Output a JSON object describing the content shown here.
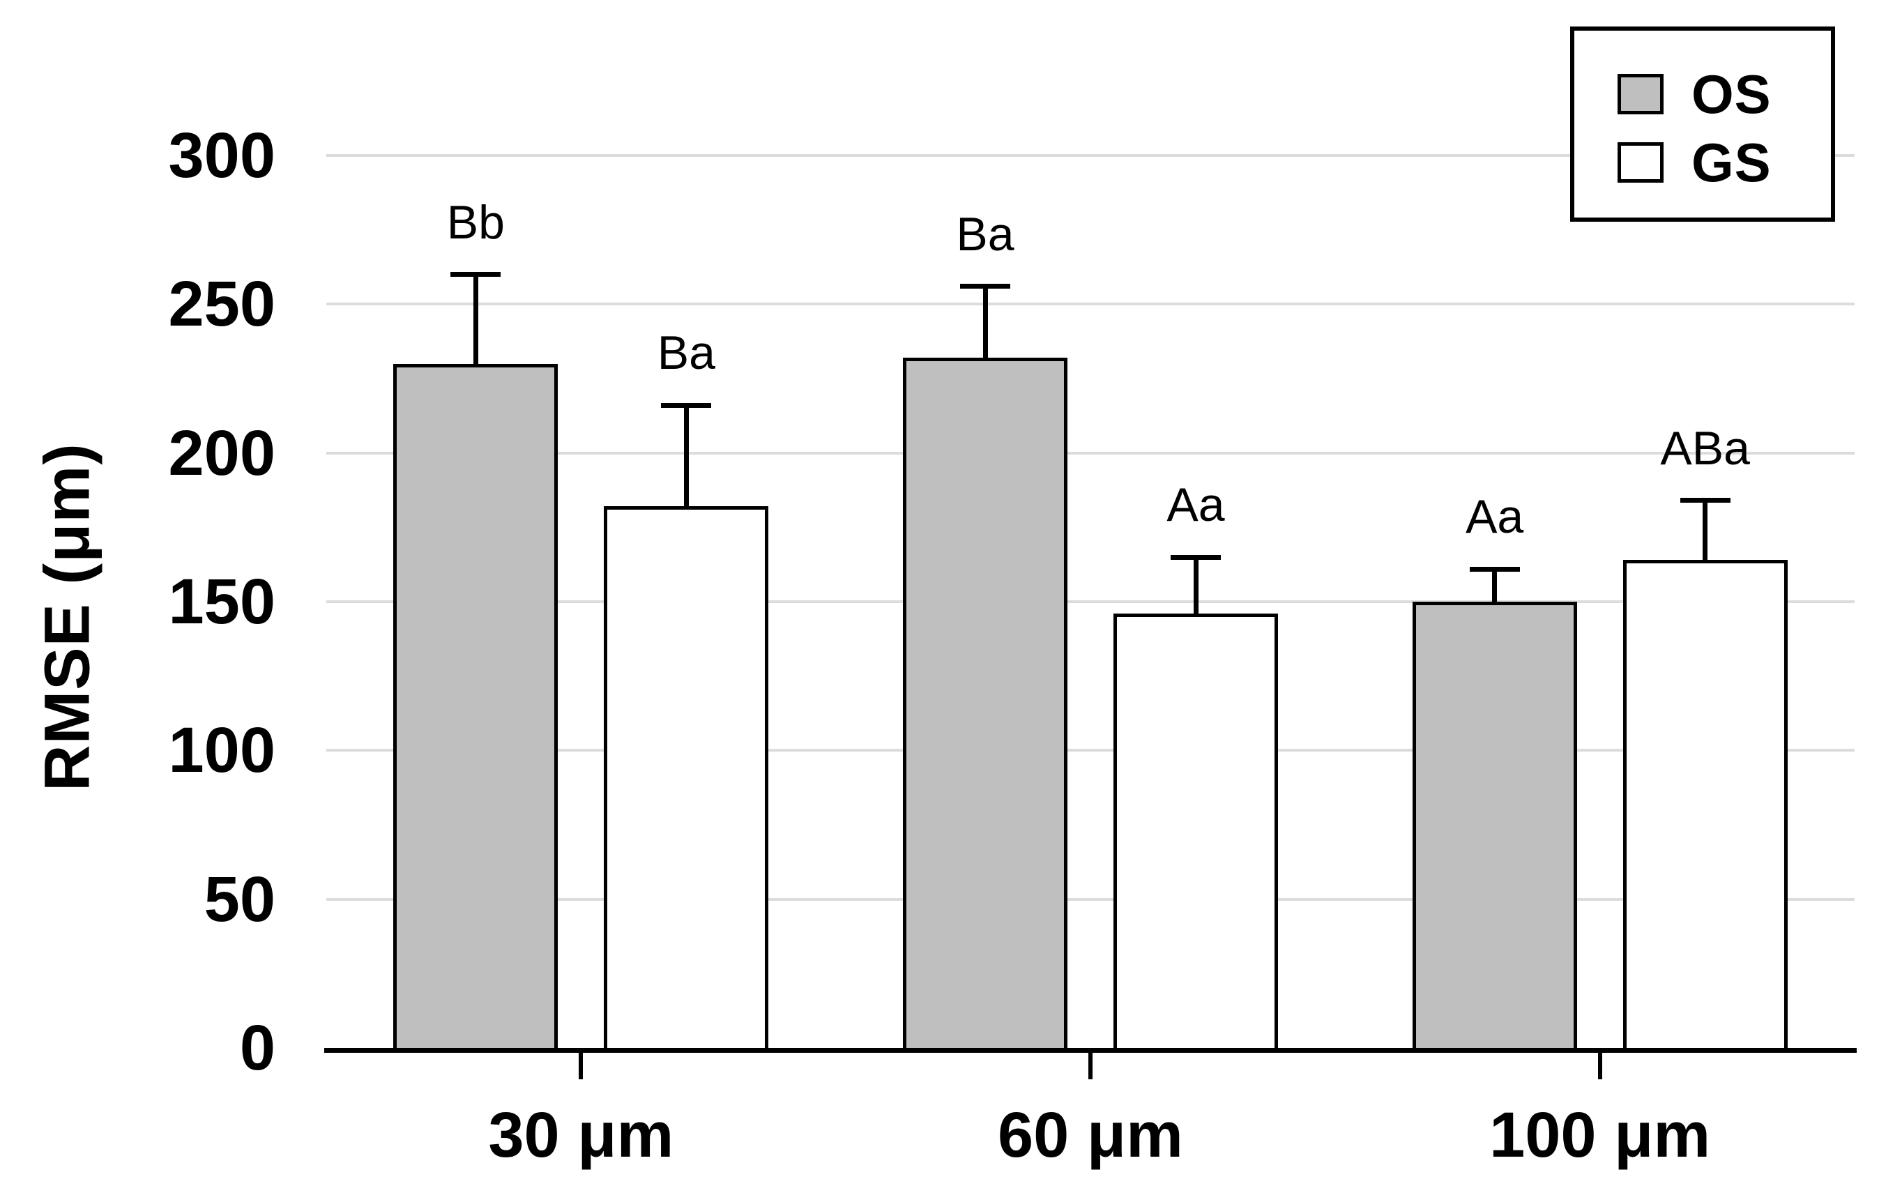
{
  "chart_data": {
    "type": "bar",
    "title": "",
    "ylabel": "RMSE (μm)",
    "xlabel": "",
    "categories": [
      "30 μm",
      "60 μm",
      "100 μm"
    ],
    "series": [
      {
        "name": "OS",
        "fill": "#bfbfbf",
        "values": [
          230,
          232,
          150
        ],
        "errors_plus": [
          30,
          24,
          11
        ],
        "annotations": [
          "Bb",
          "Ba",
          "Aa"
        ]
      },
      {
        "name": "GS",
        "fill": "#ffffff",
        "values": [
          182,
          146,
          164
        ],
        "errors_plus": [
          34,
          19,
          20
        ],
        "annotations": [
          "Ba",
          "Aa",
          "ABa"
        ]
      }
    ],
    "yticks": [
      0,
      50,
      100,
      150,
      200,
      250,
      300
    ],
    "ylim": [
      0,
      300
    ],
    "grid": true,
    "legend_position": "top-right",
    "colors": {
      "grid": "#dcdcdc",
      "axis": "#000000",
      "bar_border": "#000000",
      "background": "#ffffff"
    }
  }
}
